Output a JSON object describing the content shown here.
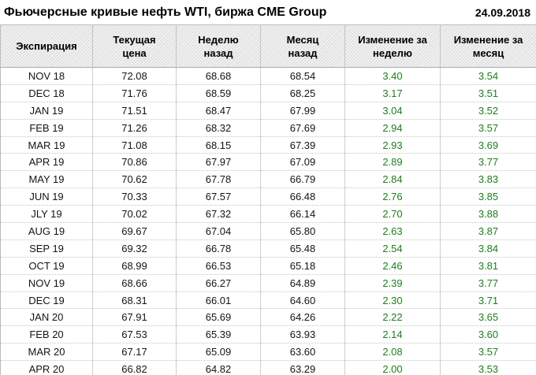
{
  "header": {
    "title": "Фьючерсные кривые нефть WTI, биржа CME Group",
    "date": "24.09.2018"
  },
  "colors": {
    "positive_change": "#1e7d1e",
    "header_background": "#e9e9e9",
    "text": "#141414"
  },
  "table": {
    "columns": [
      {
        "line1": "Экспирация",
        "line2": ""
      },
      {
        "line1": "Текущая",
        "line2": "цена"
      },
      {
        "line1": "Неделю",
        "line2": "назад"
      },
      {
        "line1": "Месяц",
        "line2": "назад"
      },
      {
        "line1": "Изменение за",
        "line2": "неделю"
      },
      {
        "line1": "Изменение за",
        "line2": "месяц"
      }
    ],
    "column_types": [
      "text",
      "num",
      "num",
      "num",
      "change",
      "change"
    ],
    "cell_names": [
      "expiration-cell",
      "current-price-cell",
      "week-ago-cell",
      "month-ago-cell",
      "week-change-cell",
      "month-change-cell"
    ],
    "rows": [
      [
        "NOV 18",
        "72.08",
        "68.68",
        "68.54",
        "3.40",
        "3.54"
      ],
      [
        "DEC 18",
        "71.76",
        "68.59",
        "68.25",
        "3.17",
        "3.51"
      ],
      [
        "JAN 19",
        "71.51",
        "68.47",
        "67.99",
        "3.04",
        "3.52"
      ],
      [
        "FEB 19",
        "71.26",
        "68.32",
        "67.69",
        "2.94",
        "3.57"
      ],
      [
        "MAR 19",
        "71.08",
        "68.15",
        "67.39",
        "2.93",
        "3.69"
      ],
      [
        "APR 19",
        "70.86",
        "67.97",
        "67.09",
        "2.89",
        "3.77"
      ],
      [
        "MAY 19",
        "70.62",
        "67.78",
        "66.79",
        "2.84",
        "3.83"
      ],
      [
        "JUN 19",
        "70.33",
        "67.57",
        "66.48",
        "2.76",
        "3.85"
      ],
      [
        "JLY 19",
        "70.02",
        "67.32",
        "66.14",
        "2.70",
        "3.88"
      ],
      [
        "AUG 19",
        "69.67",
        "67.04",
        "65.80",
        "2.63",
        "3.87"
      ],
      [
        "SEP 19",
        "69.32",
        "66.78",
        "65.48",
        "2.54",
        "3.84"
      ],
      [
        "OCT 19",
        "68.99",
        "66.53",
        "65.18",
        "2.46",
        "3.81"
      ],
      [
        "NOV 19",
        "68.66",
        "66.27",
        "64.89",
        "2.39",
        "3.77"
      ],
      [
        "DEC 19",
        "68.31",
        "66.01",
        "64.60",
        "2.30",
        "3.71"
      ],
      [
        "JAN 20",
        "67.91",
        "65.69",
        "64.26",
        "2.22",
        "3.65"
      ],
      [
        "FEB 20",
        "67.53",
        "65.39",
        "63.93",
        "2.14",
        "3.60"
      ],
      [
        "MAR 20",
        "67.17",
        "65.09",
        "63.60",
        "2.08",
        "3.57"
      ],
      [
        "APR 20",
        "66.82",
        "64.82",
        "63.29",
        "2.00",
        "3.53"
      ]
    ]
  },
  "chart_data": {
    "type": "table",
    "title": "Фьючерсные кривые нефть WTI, биржа CME Group",
    "date": "24.09.2018",
    "categories": [
      "NOV 18",
      "DEC 18",
      "JAN 19",
      "FEB 19",
      "MAR 19",
      "APR 19",
      "MAY 19",
      "JUN 19",
      "JLY 19",
      "AUG 19",
      "SEP 19",
      "OCT 19",
      "NOV 19",
      "DEC 19",
      "JAN 20",
      "FEB 20",
      "MAR 20",
      "APR 20"
    ],
    "series": [
      {
        "name": "Текущая цена",
        "values": [
          72.08,
          71.76,
          71.51,
          71.26,
          71.08,
          70.86,
          70.62,
          70.33,
          70.02,
          69.67,
          69.32,
          68.99,
          68.66,
          68.31,
          67.91,
          67.53,
          67.17,
          66.82
        ]
      },
      {
        "name": "Неделю назад",
        "values": [
          68.68,
          68.59,
          68.47,
          68.32,
          68.15,
          67.97,
          67.78,
          67.57,
          67.32,
          67.04,
          66.78,
          66.53,
          66.27,
          66.01,
          65.69,
          65.39,
          65.09,
          64.82
        ]
      },
      {
        "name": "Месяц назад",
        "values": [
          68.54,
          68.25,
          67.99,
          67.69,
          67.39,
          67.09,
          66.79,
          66.48,
          66.14,
          65.8,
          65.48,
          65.18,
          64.89,
          64.6,
          64.26,
          63.93,
          63.6,
          63.29
        ]
      },
      {
        "name": "Изменение за неделю",
        "values": [
          3.4,
          3.17,
          3.04,
          2.94,
          2.93,
          2.89,
          2.84,
          2.76,
          2.7,
          2.63,
          2.54,
          2.46,
          2.39,
          2.3,
          2.22,
          2.14,
          2.08,
          2.0
        ]
      },
      {
        "name": "Изменение за месяц",
        "values": [
          3.54,
          3.51,
          3.52,
          3.57,
          3.69,
          3.77,
          3.83,
          3.85,
          3.88,
          3.87,
          3.84,
          3.81,
          3.77,
          3.71,
          3.65,
          3.6,
          3.57,
          3.53
        ]
      }
    ]
  }
}
